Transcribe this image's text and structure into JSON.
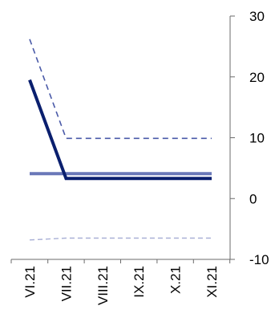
{
  "chart_data": {
    "type": "line",
    "categories": [
      "VI.21",
      "VII.21",
      "VIII.21",
      "IX.21",
      "X.21",
      "XI.21"
    ],
    "y_axis": {
      "ticks": [
        "30",
        "20",
        "10",
        "0",
        "-10"
      ],
      "tick_values": [
        30,
        20,
        10,
        0,
        -10
      ],
      "ylim": [
        -10,
        30
      ],
      "position": "right"
    },
    "grid": false,
    "legend": "none",
    "series": [
      {
        "style": "solid-thick",
        "color": "#0a1f6e",
        "x": [
          0,
          1,
          5
        ],
        "values": [
          19.5,
          3.3,
          3.3
        ]
      },
      {
        "style": "solid-thick",
        "color": "#6a78b8",
        "x": [
          0,
          5
        ],
        "values": [
          4.1,
          4.1
        ]
      },
      {
        "style": "dashed",
        "color": "#4a5aa8",
        "x": [
          0,
          1,
          5
        ],
        "values": [
          26.2,
          9.9,
          9.9
        ]
      },
      {
        "style": "dashed-light",
        "color": "#a9b0d6",
        "x": [
          0,
          1,
          5
        ],
        "values": [
          -6.8,
          -6.5,
          -6.5
        ]
      }
    ]
  }
}
